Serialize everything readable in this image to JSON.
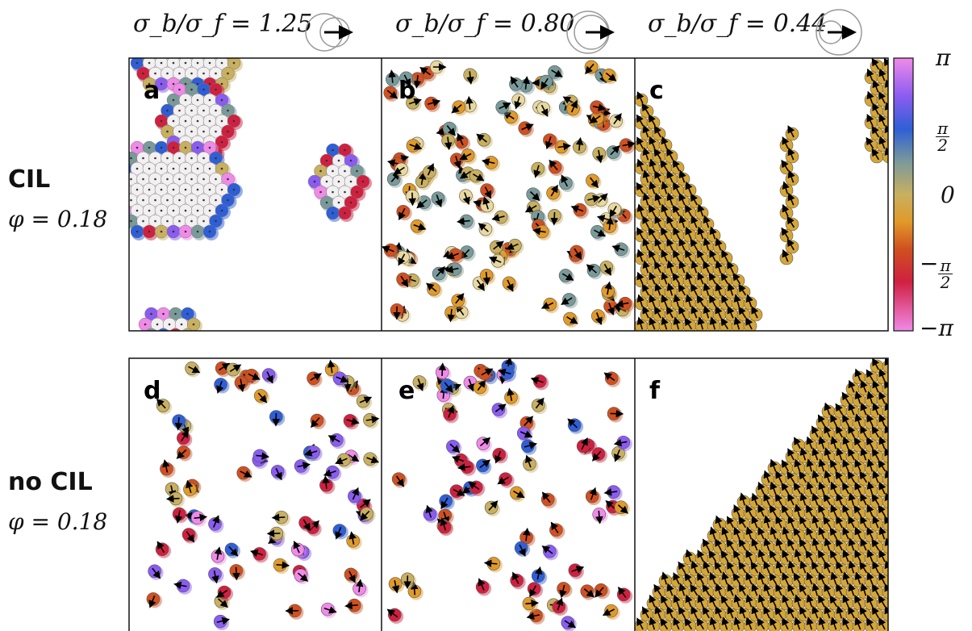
{
  "column_headers": [
    {
      "label": "σ_b/σ_f = 1.25",
      "ratio": 1.25
    },
    {
      "label": "σ_b/σ_f = 0.80",
      "ratio": 0.8
    },
    {
      "label": "σ_b/σ_f = 0.44",
      "ratio": 0.44
    }
  ],
  "rows": [
    {
      "title": "CIL",
      "phi": "φ = 0.18"
    },
    {
      "title": "no CIL",
      "phi": "φ = 0.18"
    }
  ],
  "panels": [
    {
      "letter": "a",
      "pattern": "hexagonal-clusters"
    },
    {
      "letter": "b",
      "pattern": "dispersed-gas"
    },
    {
      "letter": "c",
      "pattern": "polar-band"
    },
    {
      "letter": "d",
      "pattern": "dispersed-gas-colorful"
    },
    {
      "letter": "e",
      "pattern": "dispersed-gas-colorful"
    },
    {
      "letter": "f",
      "pattern": "polar-band"
    }
  ],
  "colorbar": {
    "tick_labels": [
      "π",
      "π/2",
      "0",
      "−π/2",
      "−π"
    ],
    "tick_values": [
      3.1416,
      1.5708,
      0,
      -1.5708,
      -3.1416
    ],
    "colors": [
      "#f08ae8",
      "#8a5cf0",
      "#2f5fd6",
      "#c8b060",
      "#e09a2a",
      "#d05020",
      "#d02040",
      "#f08ae8"
    ]
  }
}
